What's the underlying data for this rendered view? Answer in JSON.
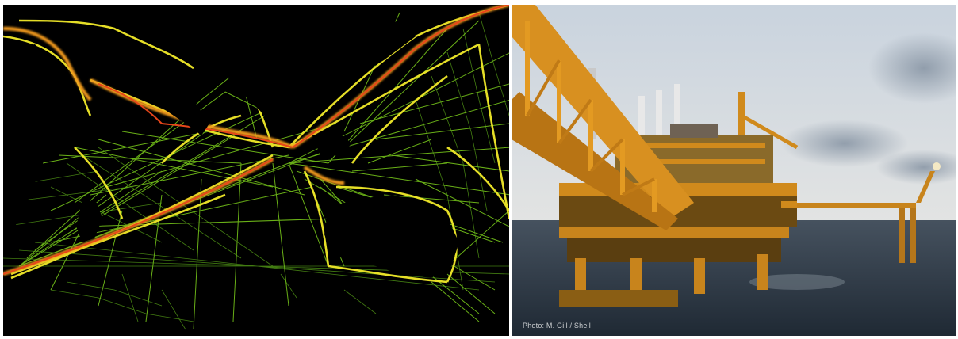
{
  "panels": {
    "left": {
      "subject": "global shipping traffic density map",
      "colors": {
        "background": "#000000",
        "land": "#000000",
        "low_density": "#7ccf1c",
        "mid_density": "#f2ea2a",
        "high_density": "#f29a1a",
        "peak_density": "#e8461a"
      }
    },
    "right": {
      "subject": "offshore oil platform at sea",
      "credit": "Photo: M. Gill / Shell",
      "colors": {
        "sky_top": "#c9d3de",
        "sky_horizon": "#e3e4e3",
        "sea": "#2d3a48",
        "structure": "#d08a1c",
        "structure_shadow": "#6b4a12"
      }
    }
  }
}
